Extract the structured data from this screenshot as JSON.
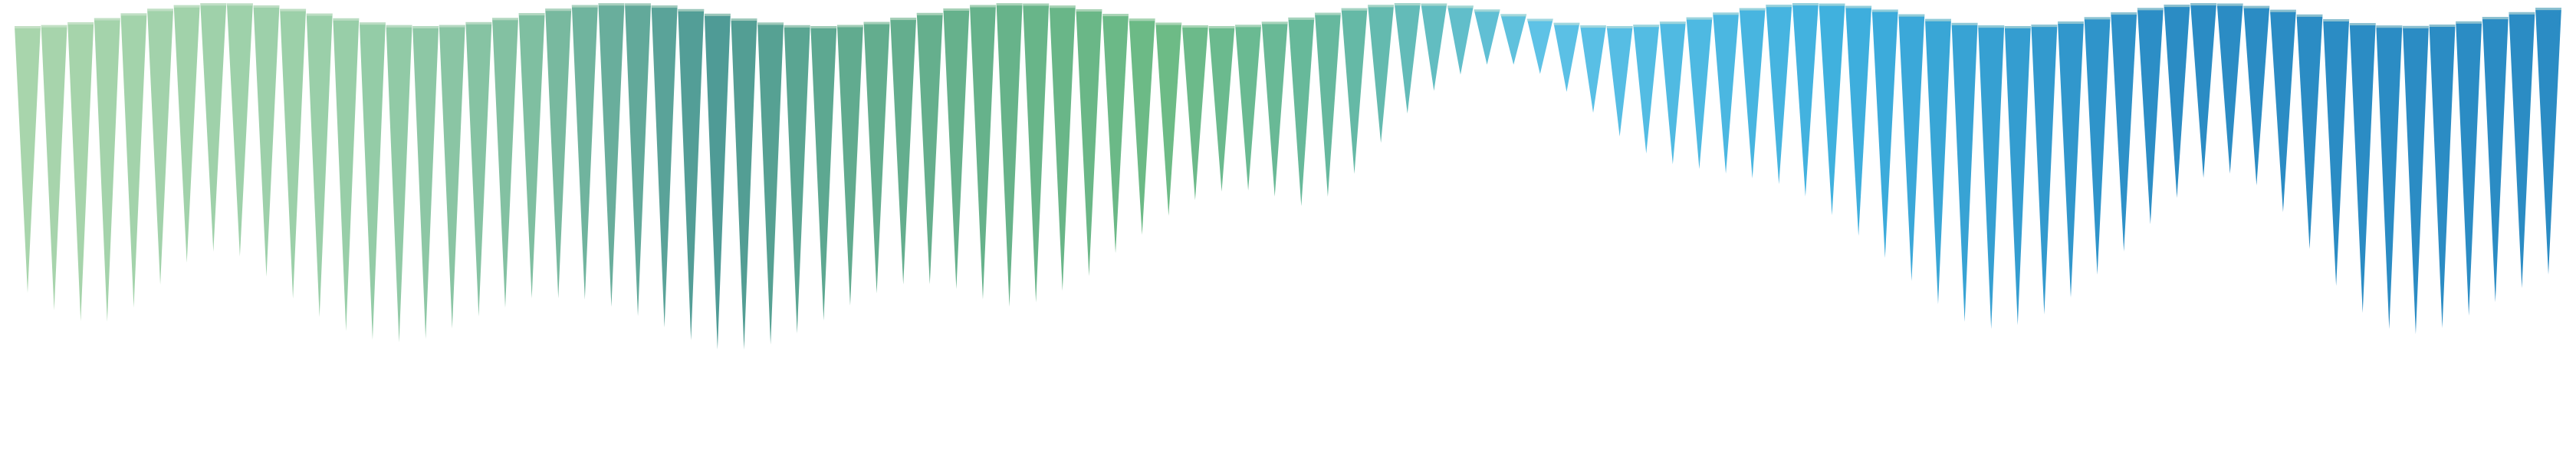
{
  "pattern": {
    "shape": "downward-tapering-spike",
    "count": 96,
    "depth_levels": [
      0.58,
      0.62,
      0.65,
      0.66,
      0.64,
      0.6,
      0.56,
      0.54,
      0.55,
      0.59,
      0.63,
      0.66,
      0.68,
      0.69,
      0.69,
      0.68,
      0.66,
      0.64,
      0.63,
      0.62,
      0.63,
      0.64,
      0.66,
      0.68,
      0.7,
      0.72,
      0.73,
      0.72,
      0.7,
      0.67,
      0.64,
      0.61,
      0.59,
      0.58,
      0.59,
      0.61,
      0.64,
      0.66,
      0.65,
      0.62,
      0.58,
      0.52,
      0.47,
      0.42,
      0.38,
      0.36,
      0.36,
      0.38,
      0.41,
      0.4,
      0.36,
      0.3,
      0.24,
      0.19,
      0.15,
      0.12,
      0.11,
      0.12,
      0.15,
      0.19,
      0.24,
      0.28,
      0.31,
      0.33,
      0.35,
      0.37,
      0.39,
      0.42,
      0.46,
      0.5,
      0.54,
      0.58,
      0.62,
      0.65,
      0.66,
      0.65,
      0.63,
      0.6,
      0.56,
      0.52,
      0.47,
      0.42,
      0.38,
      0.37,
      0.39,
      0.44,
      0.51,
      0.58,
      0.63,
      0.66,
      0.67,
      0.66,
      0.64,
      0.62,
      0.6,
      0.58
    ],
    "colors": {
      "start": "#a8d5ac",
      "mid_teal": "#4e9a96",
      "mid_green": "#6dbb85",
      "light_blue": "#5ec2e6",
      "end": "#2b8cc4"
    },
    "color_stops": [
      {
        "at": 0.0,
        "color": "#a8d5ac"
      },
      {
        "at": 0.12,
        "color": "#9acfa9"
      },
      {
        "at": 0.2,
        "color": "#7fbfa1"
      },
      {
        "at": 0.27,
        "color": "#4e9a96"
      },
      {
        "at": 0.33,
        "color": "#62ac8f"
      },
      {
        "at": 0.45,
        "color": "#6dbb85"
      },
      {
        "at": 0.52,
        "color": "#66b8a0"
      },
      {
        "at": 0.6,
        "color": "#5ec2e6"
      },
      {
        "at": 0.72,
        "color": "#3fb0de"
      },
      {
        "at": 0.85,
        "color": "#2b8cc4"
      },
      {
        "at": 1.0,
        "color": "#2b8cc4"
      }
    ],
    "cap_color": "#d8ead9"
  }
}
